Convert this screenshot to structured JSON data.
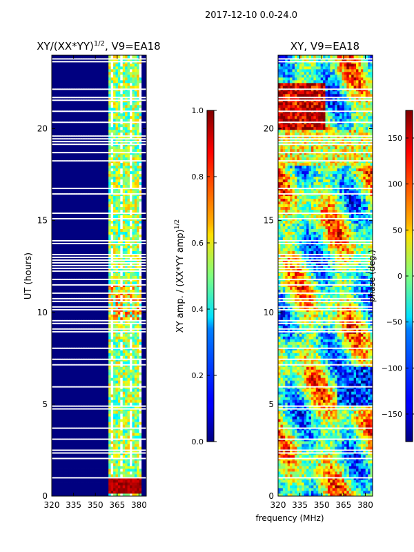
{
  "figure": {
    "suptitle": "2017-12-10 0.0-24.0",
    "xlabel_shared": "frequency (MHz)"
  },
  "chart_data": [
    {
      "type": "heatmap",
      "title_main": "XY/(XX*YY)",
      "title_exp": "1/2",
      "title_tail": ", V9=EA18",
      "xlabel": "",
      "ylabel": "UT (hours)",
      "xlim": [
        320,
        385
      ],
      "ylim": [
        0,
        24
      ],
      "xticks": [
        320,
        335,
        350,
        365,
        380
      ],
      "yticks": [
        0,
        5,
        10,
        15,
        20
      ],
      "colormap": "jet",
      "colorbar": {
        "label_main": "XY amp. / (XX*YY amp)",
        "label_exp": "1/2",
        "vmin": 0.0,
        "vmax": 1.0,
        "ticks": [
          "0.0",
          "0.2",
          "0.4",
          "0.6",
          "0.8",
          "1.0"
        ]
      },
      "description_values": {
        "background_value": 0.0,
        "active_band_mhz": [
          359,
          381
        ],
        "active_band_typical": [
          0.35,
          0.7
        ],
        "high_patch_ut": [
          0.1,
          1.0
        ]
      }
    },
    {
      "type": "heatmap",
      "title_main": "XY, V9=EA18",
      "xlabel": "frequency (MHz)",
      "ylabel": "",
      "xlim": [
        320,
        385
      ],
      "ylim": [
        0,
        24
      ],
      "xticks": [
        320,
        335,
        350,
        365,
        380
      ],
      "yticks": [
        0,
        5,
        10,
        15,
        20
      ],
      "colormap": "jet",
      "colorbar": {
        "label_main": "phase (deg.)",
        "vmin": -180,
        "vmax": 180,
        "ticks": [
          "150",
          "100",
          "50",
          "0",
          "−50",
          "−100",
          "−150"
        ]
      }
    }
  ],
  "colors": {
    "jet_low": "#00007f",
    "jet_high": "#7f0000",
    "gap": "#ffffff"
  }
}
